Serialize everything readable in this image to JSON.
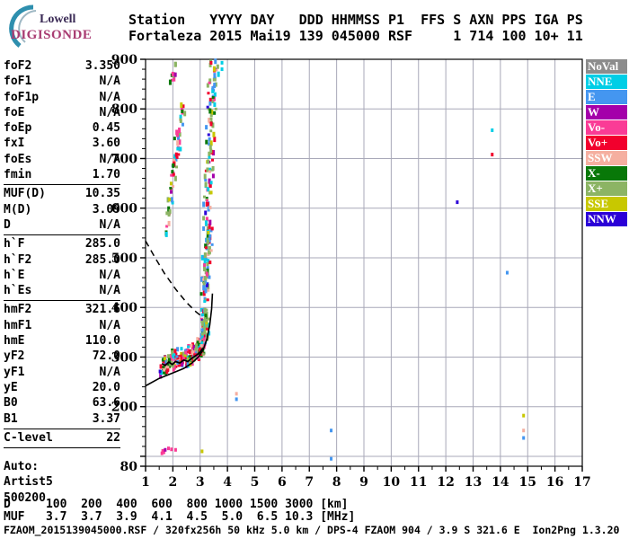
{
  "header": {
    "logo_top": "Lowell",
    "logo_bottom": "DIGISONDE",
    "line1": "Station   YYYY DAY   DDD HHMMSS P1  FFS S AXN PPS IGA PS",
    "line2": "Fortaleza 2015 Mai19 139 045000 RSF     1 714 100 10+ 11"
  },
  "left_panel": {
    "groups": [
      [
        {
          "label": "foF2",
          "value": "3.350"
        },
        {
          "label": "foF1",
          "value": "N/A"
        },
        {
          "label": "foF1p",
          "value": "N/A"
        },
        {
          "label": "foE",
          "value": "N/A"
        },
        {
          "label": "foEp",
          "value": "0.45"
        },
        {
          "label": "fxI",
          "value": "3.60"
        },
        {
          "label": "foEs",
          "value": "N/A"
        },
        {
          "label": "fmin",
          "value": "1.70"
        }
      ],
      [
        {
          "label": "MUF(D)",
          "value": "10.35"
        },
        {
          "label": "M(D)",
          "value": "3.09"
        },
        {
          "label": "D",
          "value": "N/A"
        }
      ],
      [
        {
          "label": "h`F",
          "value": "285.0"
        },
        {
          "label": "h`F2",
          "value": "285.0"
        },
        {
          "label": "h`E",
          "value": "N/A"
        },
        {
          "label": "h`Es",
          "value": "N/A"
        }
      ],
      [
        {
          "label": "hmF2",
          "value": "321.6"
        },
        {
          "label": "hmF1",
          "value": "N/A"
        },
        {
          "label": "hmE",
          "value": "110.0"
        },
        {
          "label": "yF2",
          "value": "72.0"
        },
        {
          "label": "yF1",
          "value": "N/A"
        },
        {
          "label": "yE",
          "value": "20.0"
        },
        {
          "label": "B0",
          "value": "63.6"
        },
        {
          "label": "B1",
          "value": "3.37"
        }
      ],
      [
        {
          "label": "C-level",
          "value": "22"
        }
      ]
    ],
    "auto_lines": [
      "Auto:",
      "Artist5",
      "500200"
    ]
  },
  "legend": {
    "items": [
      {
        "label": "NoVal",
        "color": "#8C8C8C"
      },
      {
        "label": "NNE",
        "color": "#00CEE6"
      },
      {
        "label": "E",
        "color": "#4496F0"
      },
      {
        "label": "W",
        "color": "#A400AA"
      },
      {
        "label": "Vo-",
        "color": "#FA3C96"
      },
      {
        "label": "Vo+",
        "color": "#F2002D"
      },
      {
        "label": "SSW",
        "color": "#F5AFA0"
      },
      {
        "label": "X-",
        "color": "#087808"
      },
      {
        "label": "X+",
        "color": "#8CB464"
      },
      {
        "label": "SSE",
        "color": "#C8C800"
      },
      {
        "label": "NNW",
        "color": "#2B00D7"
      }
    ]
  },
  "footer": {
    "d_line": "D     100  200  400  600  800 1000 1500 3000 [km]",
    "muf_line": "MUF   3.7  3.7  3.9  4.1  4.5  5.0  6.5 10.3 [MHz]",
    "file_line": "FZAOM_2015139045000.RSF / 320fx256h 50 kHz 5.0 km / DPS-4 FZAOM 904 / 3.9 S 321.6 E  Ion2Png 1.3.20"
  },
  "chart_data": {
    "type": "scatter",
    "x_unit": "MHz",
    "y_unit": "km",
    "x_range": [
      1,
      17
    ],
    "y_range": [
      80,
      900
    ],
    "x_ticks": [
      1,
      2,
      3,
      4,
      5,
      6,
      7,
      8,
      9,
      10,
      11,
      12,
      13,
      14,
      15,
      16,
      17
    ],
    "y_tick_labels": [
      900,
      800,
      700,
      600,
      500,
      400,
      300,
      200,
      80
    ],
    "grid_x": [
      2,
      3,
      4,
      5,
      6,
      7,
      8,
      9,
      10,
      11,
      12,
      13,
      14,
      15,
      16
    ],
    "grid_y": [
      100,
      200,
      300,
      400,
      500,
      600,
      700,
      800
    ],
    "grid_color": "#a8a8b8",
    "legend_position": "right",
    "colors": {
      "NoVal": "#8C8C8C",
      "NNE": "#00CEE6",
      "E": "#4496F0",
      "W": "#A400AA",
      "Vo-": "#FA3C96",
      "Vo+": "#F2002D",
      "SSW": "#F5AFA0",
      "X-": "#087808",
      "X+": "#8CB464",
      "SSE": "#C8C800",
      "NNW": "#2B00D7"
    },
    "curves": {
      "dashed_forecast": [
        [
          1.0,
          534
        ],
        [
          1.35,
          500
        ],
        [
          1.7,
          468
        ],
        [
          2.1,
          437
        ],
        [
          2.5,
          410
        ],
        [
          2.85,
          391
        ],
        [
          3.1,
          380
        ]
      ],
      "profile": [
        [
          1.0,
          242
        ],
        [
          1.5,
          257
        ],
        [
          2.0,
          268
        ],
        [
          2.4,
          277
        ],
        [
          2.7,
          288
        ],
        [
          2.95,
          301
        ],
        [
          3.12,
          316
        ],
        [
          3.25,
          337
        ],
        [
          3.35,
          364
        ],
        [
          3.42,
          397
        ],
        [
          3.45,
          428
        ]
      ],
      "fitted_trace": [
        [
          1.6,
          287
        ],
        [
          1.72,
          283
        ],
        [
          1.85,
          290
        ],
        [
          1.98,
          285
        ],
        [
          2.1,
          291
        ],
        [
          2.25,
          288
        ],
        [
          2.4,
          294
        ],
        [
          2.55,
          291
        ],
        [
          2.7,
          298
        ],
        [
          2.85,
          303
        ],
        [
          3.0,
          310
        ],
        [
          3.1,
          318
        ]
      ]
    },
    "e_region_points": [
      [
        1.6,
        106,
        "Vo-"
      ],
      [
        1.63,
        111,
        "Vo-"
      ],
      [
        1.67,
        108,
        "Vo-"
      ],
      [
        1.72,
        113,
        "W"
      ],
      [
        1.84,
        116,
        "Vo-"
      ],
      [
        1.95,
        114,
        "Vo-"
      ],
      [
        2.1,
        113,
        "Vo-"
      ],
      [
        3.07,
        110,
        "SSE"
      ]
    ],
    "isolated_points": [
      [
        1.53,
        271,
        "NNW"
      ],
      [
        3.8,
        880,
        "NNE"
      ],
      [
        3.8,
        893,
        "NNE"
      ],
      [
        4.33,
        226,
        "SSW"
      ],
      [
        4.33,
        215,
        "E"
      ],
      [
        7.8,
        152,
        "E"
      ],
      [
        7.8,
        95,
        "E"
      ],
      [
        12.42,
        612,
        "NNW"
      ],
      [
        13.7,
        757,
        "NNE"
      ],
      [
        13.7,
        708,
        "Vo+"
      ],
      [
        14.25,
        470,
        "E"
      ],
      [
        14.85,
        182,
        "SSE"
      ],
      [
        14.85,
        152,
        "SSW"
      ],
      [
        14.85,
        137,
        "E"
      ]
    ],
    "scatter_clusters": [
      {
        "name": "f_layer_main_trace",
        "seed": 11,
        "count": 250,
        "bias": 1.0,
        "path": [
          [
            1.62,
            286
          ],
          [
            2.0,
            291
          ],
          [
            2.4,
            298
          ],
          [
            2.7,
            306
          ],
          [
            2.95,
            316
          ],
          [
            3.1,
            327
          ],
          [
            3.22,
            342
          ]
        ],
        "f_jitter": 0.07,
        "h_jitter": 16,
        "palette": [
          [
            "Vo+",
            0.2
          ],
          [
            "Vo-",
            0.16
          ],
          [
            "X-",
            0.13
          ],
          [
            "X+",
            0.15
          ],
          [
            "NNE",
            0.09
          ],
          [
            "E",
            0.11
          ],
          [
            "SSW",
            0.08
          ],
          [
            "W",
            0.03
          ],
          [
            "SSE",
            0.03
          ],
          [
            "NNW",
            0.02
          ]
        ]
      },
      {
        "name": "spread_f_column",
        "seed": 77,
        "count": 220,
        "bias": 1.35,
        "path": [
          [
            3.18,
            350
          ],
          [
            3.22,
            450
          ],
          [
            3.28,
            560
          ],
          [
            3.33,
            680
          ],
          [
            3.42,
            800
          ],
          [
            3.5,
            893
          ]
        ],
        "f_jitter": 0.13,
        "h_jitter": 14,
        "palette": [
          [
            "X+",
            0.34
          ],
          [
            "E",
            0.16
          ],
          [
            "NNE",
            0.13
          ],
          [
            "Vo+",
            0.09
          ],
          [
            "Vo-",
            0.07
          ],
          [
            "SSW",
            0.07
          ],
          [
            "X-",
            0.06
          ],
          [
            "SSE",
            0.04
          ],
          [
            "W",
            0.03
          ],
          [
            "NNW",
            0.01
          ]
        ]
      },
      {
        "name": "oblique_branch",
        "seed": 5,
        "count": 62,
        "bias": 1.0,
        "path": [
          [
            1.74,
            556
          ],
          [
            1.95,
            640
          ],
          [
            2.12,
            706
          ],
          [
            2.3,
            770
          ],
          [
            2.4,
            805
          ]
        ],
        "f_jitter": 0.07,
        "h_jitter": 13,
        "palette": [
          [
            "Vo+",
            0.18
          ],
          [
            "Vo-",
            0.16
          ],
          [
            "X-",
            0.16
          ],
          [
            "X+",
            0.12
          ],
          [
            "NNE",
            0.1
          ],
          [
            "E",
            0.08
          ],
          [
            "SSW",
            0.12
          ],
          [
            "SSE",
            0.04
          ],
          [
            "W",
            0.04
          ]
        ]
      },
      {
        "name": "topside_sparse",
        "seed": 9,
        "count": 9,
        "bias": 1.0,
        "path": [
          [
            1.92,
            852
          ],
          [
            2.15,
            888
          ]
        ],
        "f_jitter": 0.1,
        "h_jitter": 10,
        "palette": [
          [
            "X+",
            0.4
          ],
          [
            "X-",
            0.3
          ],
          [
            "Vo-",
            0.2
          ],
          [
            "W",
            0.1
          ]
        ]
      }
    ]
  }
}
